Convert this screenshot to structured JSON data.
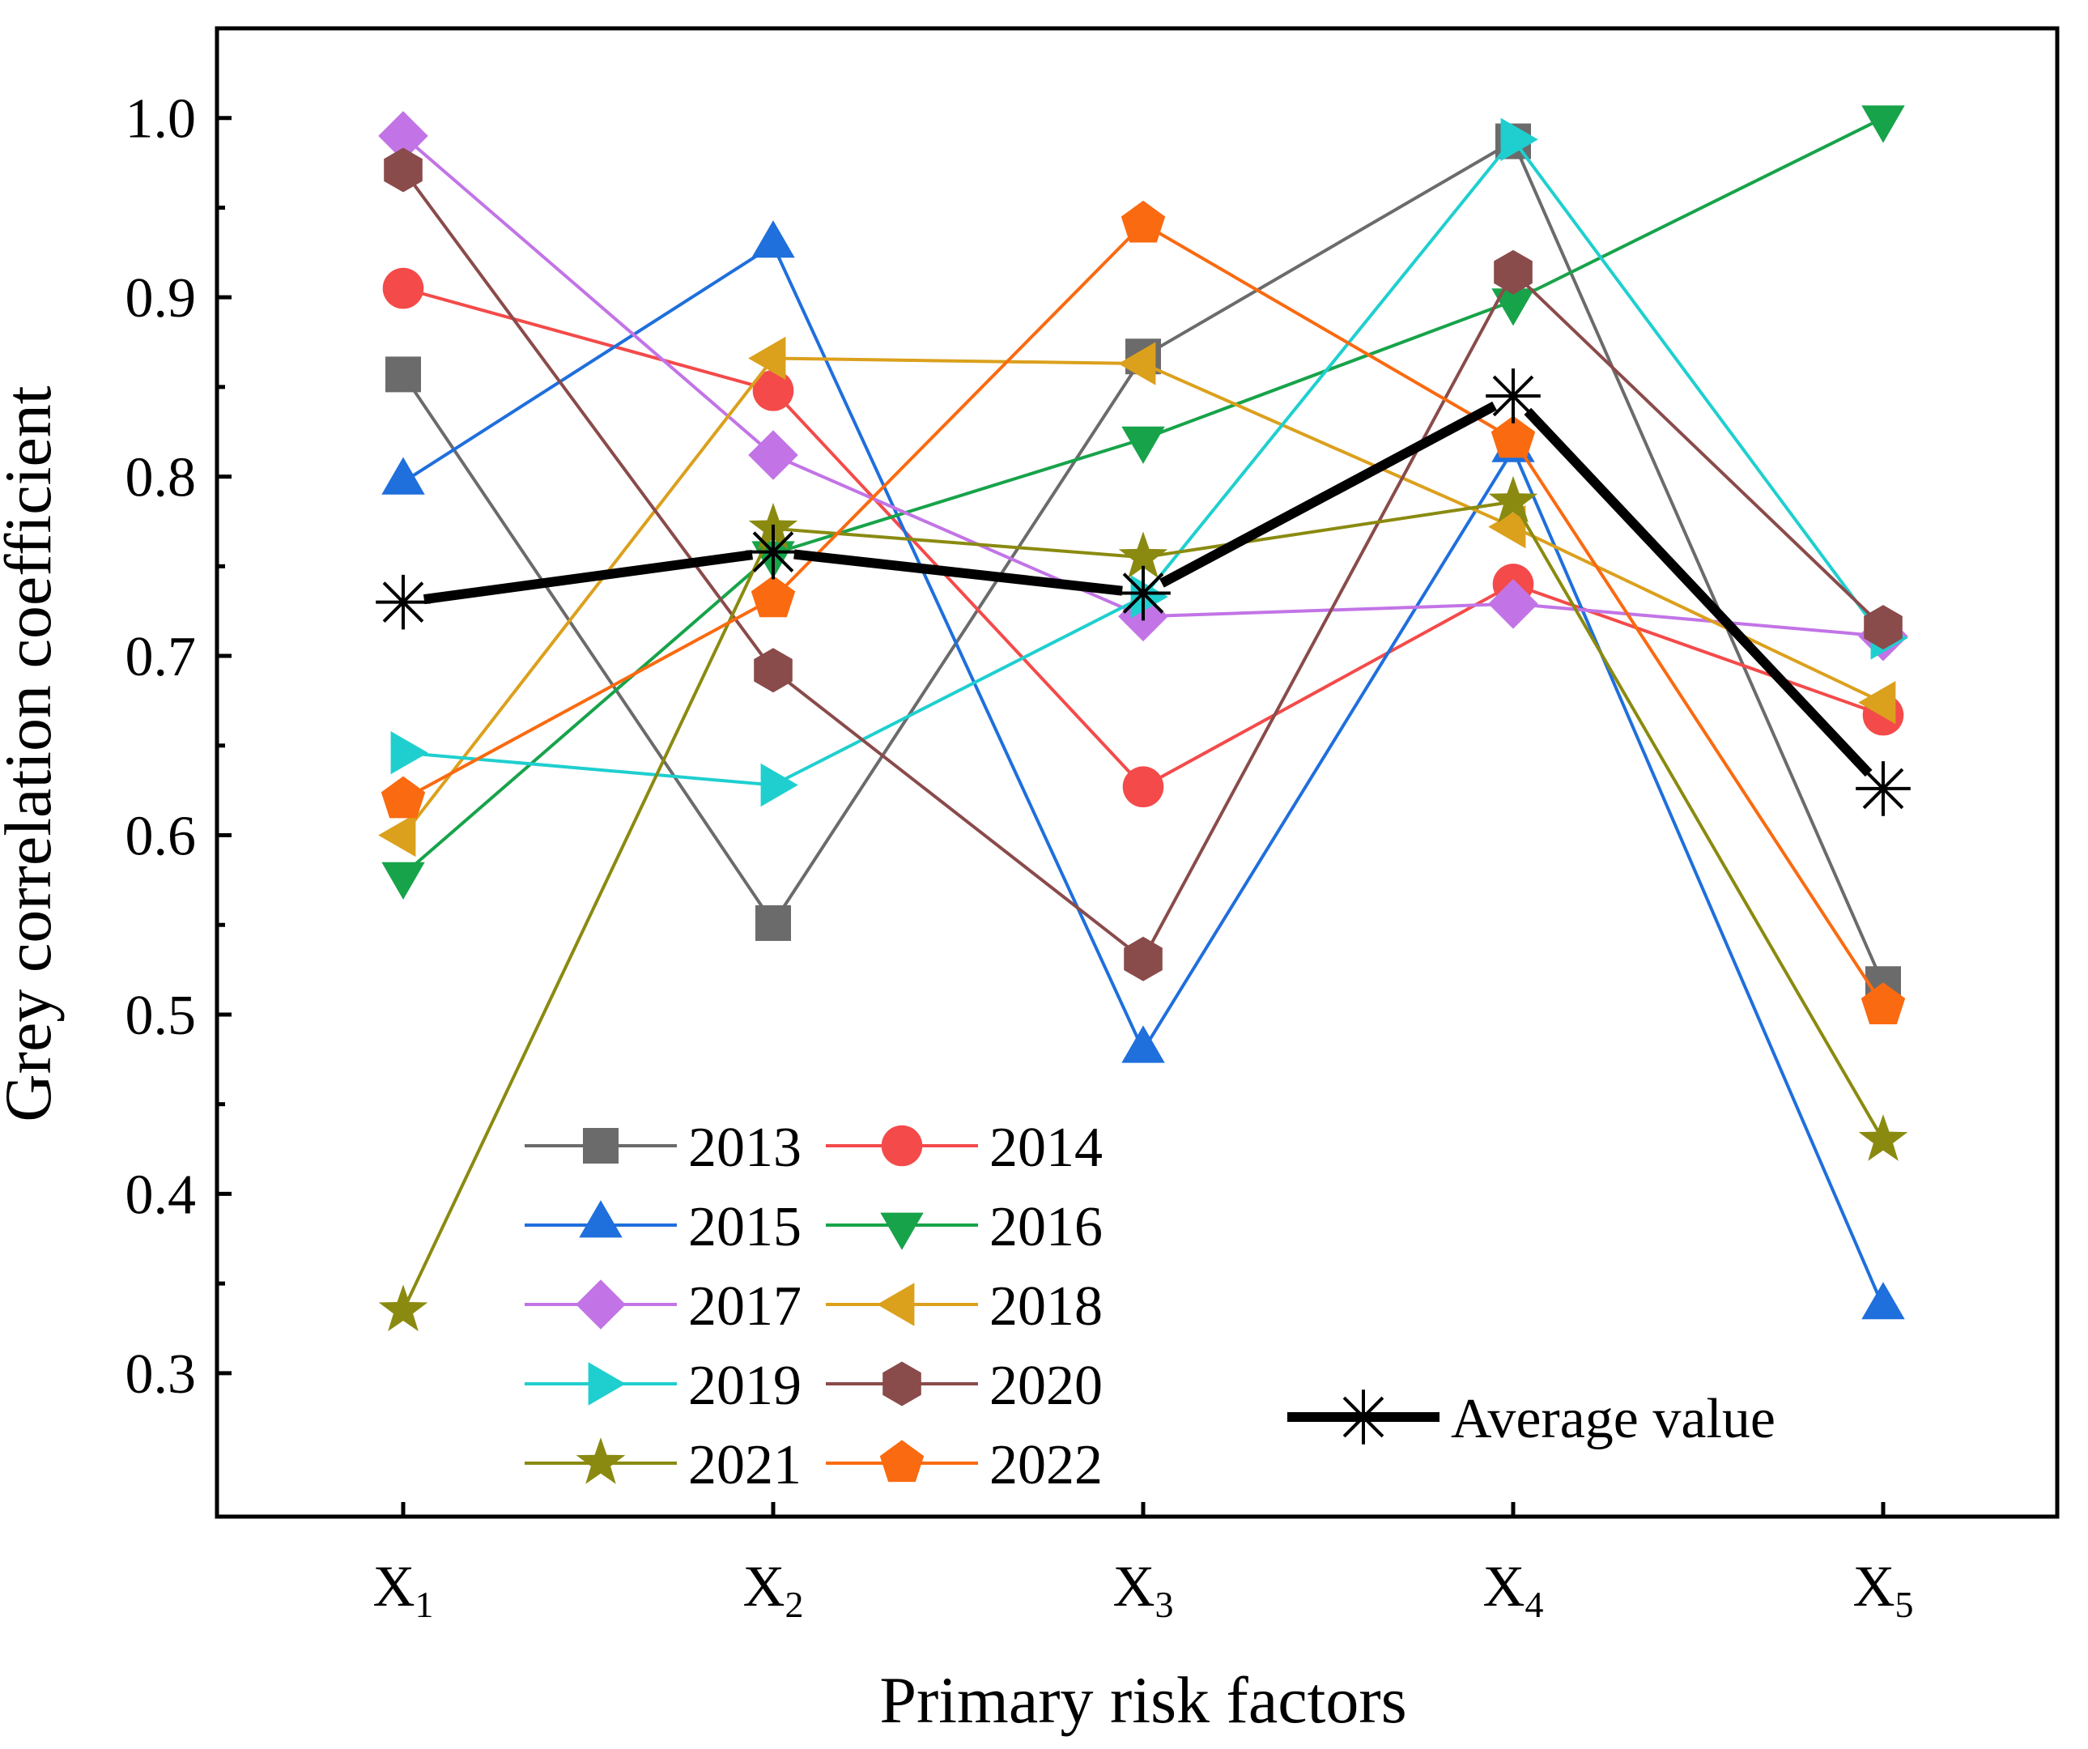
{
  "chart_data": {
    "type": "line",
    "title": "",
    "xlabel": "Primary risk factors",
    "ylabel": "Grey correlation coefficient",
    "categories": [
      {
        "base": "X",
        "sub": "1"
      },
      {
        "base": "X",
        "sub": "2"
      },
      {
        "base": "X",
        "sub": "3"
      },
      {
        "base": "X",
        "sub": "4"
      },
      {
        "base": "X",
        "sub": "5"
      }
    ],
    "ylim": [
      0.22,
      1.05
    ],
    "yticks": [
      "0.3",
      "0.4",
      "0.5",
      "0.6",
      "0.7",
      "0.8",
      "0.9",
      "1.0"
    ],
    "ytick_values": [
      0.3,
      0.4,
      0.5,
      0.6,
      0.7,
      0.8,
      0.9,
      1.0
    ],
    "yminor": [
      0.35,
      0.45,
      0.55,
      0.65,
      0.75,
      0.85,
      0.95
    ],
    "grid": false,
    "legend_position": "bottom-left",
    "series": [
      {
        "name": "2013",
        "color": "#6b6b6b",
        "marker": "square",
        "values": [
          0.857,
          0.551,
          0.867,
          0.987,
          0.517
        ]
      },
      {
        "name": "2014",
        "color": "#f44a4a",
        "marker": "circle",
        "values": [
          0.905,
          0.848,
          0.627,
          0.74,
          0.667
        ]
      },
      {
        "name": "2015",
        "color": "#1f6fdc",
        "marker": "triangle-up",
        "values": [
          0.797,
          0.929,
          0.48,
          0.815,
          0.337
        ]
      },
      {
        "name": "2016",
        "color": "#17a34a",
        "marker": "triangle-down",
        "values": [
          0.578,
          0.757,
          0.821,
          0.898,
          1.0
        ]
      },
      {
        "name": "2017",
        "color": "#c274e6",
        "marker": "diamond",
        "values": [
          0.99,
          0.812,
          0.722,
          0.729,
          0.711
        ]
      },
      {
        "name": "2018",
        "color": "#dba01c",
        "marker": "triangle-left",
        "values": [
          0.6,
          0.866,
          0.863,
          0.772,
          0.674
        ]
      },
      {
        "name": "2019",
        "color": "#1fcfcf",
        "marker": "triangle-right",
        "values": [
          0.646,
          0.628,
          0.733,
          0.988,
          0.71
        ]
      },
      {
        "name": "2020",
        "color": "#8a4b4b",
        "marker": "hexagon",
        "values": [
          0.971,
          0.692,
          0.531,
          0.914,
          0.716
        ]
      },
      {
        "name": "2021",
        "color": "#8a8a10",
        "marker": "star",
        "values": [
          0.335,
          0.771,
          0.755,
          0.786,
          0.43
        ]
      },
      {
        "name": "2022",
        "color": "#fa6a10",
        "marker": "pentagon",
        "values": [
          0.62,
          0.732,
          0.941,
          0.821,
          0.505
        ]
      }
    ],
    "average": {
      "name": "Average value",
      "color": "#000000",
      "marker": "asterisk",
      "values": [
        0.73,
        0.758,
        0.735,
        0.845,
        0.626
      ]
    }
  }
}
